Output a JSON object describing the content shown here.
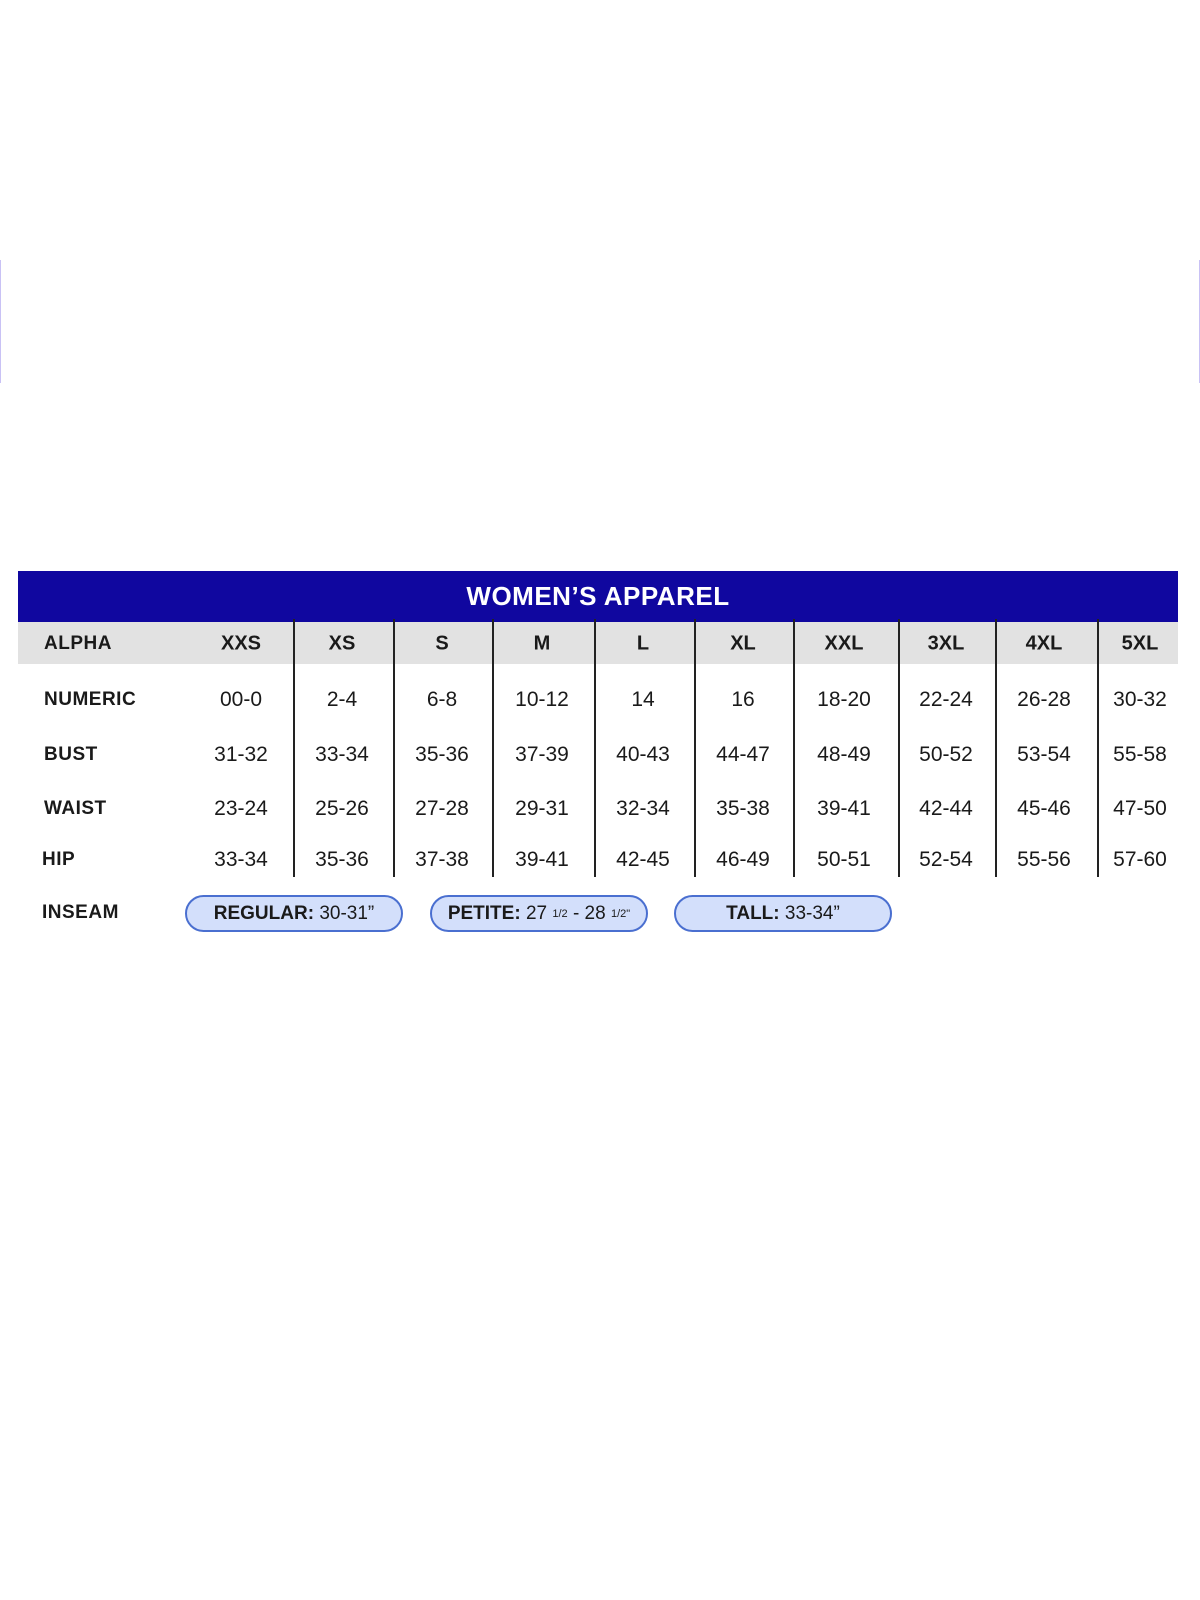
{
  "title": "WOMEN’S APPAREL",
  "colors": {
    "header_bg": "#10079f",
    "alpha_row_bg": "#e2e2e2",
    "pill_bg": "#d3dffb",
    "pill_border": "#4a6fd0"
  },
  "rows": [
    {
      "label": "ALPHA",
      "values": [
        "XXS",
        "XS",
        "S",
        "M",
        "L",
        "XL",
        "XXL",
        "3XL",
        "4XL",
        "5XL"
      ]
    },
    {
      "label": "NUMERIC",
      "values": [
        "00-0",
        "2-4",
        "6-8",
        "10-12",
        "14",
        "16",
        "18-20",
        "22-24",
        "26-28",
        "30-32"
      ]
    },
    {
      "label": "BUST",
      "values": [
        "31-32",
        "33-34",
        "35-36",
        "37-39",
        "40-43",
        "44-47",
        "48-49",
        "50-52",
        "53-54",
        "55-58"
      ]
    },
    {
      "label": "WAIST",
      "values": [
        "23-24",
        "25-26",
        "27-28",
        "29-31",
        "32-34",
        "35-38",
        "39-41",
        "42-44",
        "45-46",
        "47-50"
      ]
    },
    {
      "label": "HIP",
      "values": [
        "33-34",
        "35-36",
        "37-38",
        "39-41",
        "42-45",
        "46-49",
        "50-51",
        "52-54",
        "55-56",
        "57-60"
      ]
    }
  ],
  "inseam": {
    "label": "INSEAM",
    "regular": {
      "name": "REGULAR:",
      "value": "30-31”"
    },
    "petite": {
      "name": "PETITE:",
      "a": "27",
      "a_frac": "1/2",
      "dash": "-",
      "b": "28",
      "b_frac": "1/2\""
    },
    "tall": {
      "name": "TALL:",
      "value": "33-34”"
    }
  }
}
